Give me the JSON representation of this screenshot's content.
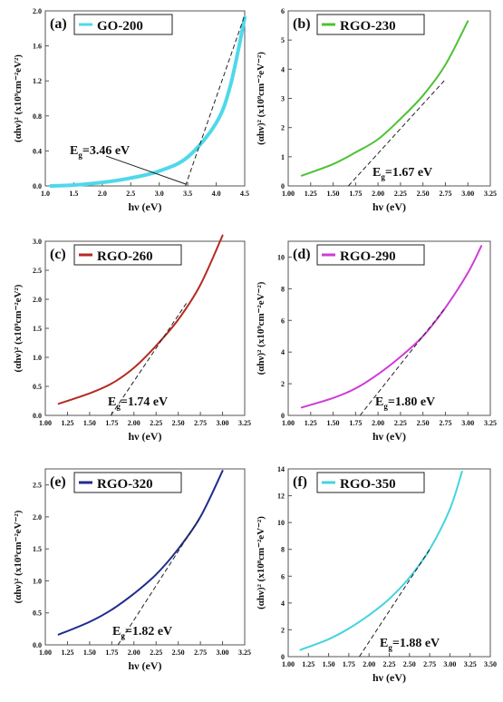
{
  "figure": {
    "panels": [
      {
        "label": "(a)",
        "legend": "GO-200",
        "color": "#4fd8ea",
        "eg_label": "Eg=3.46 eV",
        "eg_sub": "g",
        "eg_val": "=3.46 eV",
        "ylabel_exp": "9",
        "xlabel": "hν (eV)",
        "xticks": [
          "1.0",
          "1.5",
          "2.0",
          "2.5",
          "3.0",
          "3.5",
          "4.0",
          "4.5"
        ],
        "yticks": [
          "0.0",
          "0.4",
          "0.8",
          "1.2",
          "1.6",
          "2.0"
        ]
      },
      {
        "label": "(b)",
        "legend": "RGO-230",
        "color": "#4cc234",
        "eg_label": "Eg=1.67 eV",
        "eg_sub": "g",
        "eg_val": "=1.67 eV",
        "ylabel_exp": "9",
        "xlabel": "hν (eV)",
        "xticks": [
          "1.00",
          "1.25",
          "1.50",
          "1.75",
          "2.00",
          "2.25",
          "2.50",
          "2.75",
          "3.00",
          "3.25"
        ],
        "yticks": [
          "0",
          "1",
          "2",
          "3",
          "4",
          "5",
          "6"
        ]
      },
      {
        "label": "(c)",
        "legend": "RGO-260",
        "color": "#b52a22",
        "eg_label": "Eg=1.74 eV",
        "eg_sub": "g",
        "eg_val": "=1.74 eV",
        "ylabel_exp": "9",
        "xlabel": "hν (eV)",
        "xticks": [
          "1.00",
          "1.25",
          "1.50",
          "1.75",
          "2.00",
          "2.25",
          "2.50",
          "2.75",
          "3.00",
          "3.25"
        ],
        "yticks": [
          "0.0",
          "0.5",
          "1.0",
          "1.5",
          "2.0",
          "2.5",
          "3.0"
        ]
      },
      {
        "label": "(d)",
        "legend": "RGO-290",
        "color": "#cf3bd8",
        "eg_label": "Eg=1.80 eV",
        "eg_sub": "g",
        "eg_val": "=1.80 eV",
        "ylabel_exp": "9",
        "xlabel": "hν (eV)",
        "xticks": [
          "1.00",
          "1.25",
          "1.50",
          "1.75",
          "2.00",
          "2.25",
          "2.50",
          "2.75",
          "3.00",
          "3.25"
        ],
        "yticks": [
          "0",
          "2",
          "4",
          "6",
          "8",
          "10"
        ]
      },
      {
        "label": "(e)",
        "legend": "RGO-320",
        "color": "#1f2c8c",
        "eg_label": "Eg=1.82 eV",
        "eg_sub": "g",
        "eg_val": "=1.82 eV",
        "ylabel_exp": "9",
        "xlabel": "hν (eV)",
        "xticks": [
          "1.00",
          "1.25",
          "1.50",
          "1.75",
          "2.00",
          "2.25",
          "2.50",
          "2.75",
          "3.00",
          "3.25"
        ],
        "yticks": [
          "0.0",
          "0.5",
          "1.0",
          "1.5",
          "2.0",
          "2.5"
        ]
      },
      {
        "label": "(f)",
        "legend": "RGO-350",
        "color": "#43d4de",
        "eg_label": "Eg=1.88 eV",
        "eg_sub": "g",
        "eg_val": "=1.88 eV",
        "ylabel_exp": "8",
        "xlabel": "hν (eV)",
        "xticks": [
          "1.00",
          "1.25",
          "1.50",
          "1.75",
          "2.00",
          "2.25",
          "2.50",
          "2.75",
          "3.00",
          "3.25",
          "3.50"
        ],
        "yticks": [
          "0",
          "2",
          "4",
          "6",
          "8",
          "10",
          "12",
          "14"
        ]
      }
    ]
  },
  "chart_data": [
    {
      "type": "line",
      "title": "(a)",
      "xlabel": "hν (eV)",
      "ylabel": "(αhν)² (x10⁹cm⁻²eV²)",
      "xlim": [
        1.0,
        4.5
      ],
      "ylim": [
        0.0,
        2.0
      ],
      "grid": false,
      "legend_position": "top-left",
      "series": [
        {
          "name": "GO-200",
          "color": "#4fd8ea",
          "x": [
            1.1,
            1.5,
            2.0,
            2.5,
            3.0,
            3.5,
            4.0,
            4.25,
            4.5
          ],
          "y": [
            0.0,
            0.01,
            0.04,
            0.09,
            0.17,
            0.33,
            0.72,
            1.15,
            1.92
          ]
        }
      ],
      "tangent": {
        "x": [
          3.46,
          4.5
        ],
        "y": [
          0.0,
          1.95
        ]
      },
      "annotation": "Eg=3.46 eV",
      "eg": 3.46
    },
    {
      "type": "line",
      "title": "(b)",
      "xlabel": "hν (eV)",
      "ylabel": "(αhν)² (x10⁹cm⁻²eV⁻²)",
      "xlim": [
        1.0,
        3.25
      ],
      "ylim": [
        0,
        6
      ],
      "grid": false,
      "legend_position": "top-left",
      "series": [
        {
          "name": "RGO-230",
          "color": "#4cc234",
          "x": [
            1.15,
            1.5,
            1.75,
            2.0,
            2.25,
            2.5,
            2.75,
            3.0
          ],
          "y": [
            0.35,
            0.75,
            1.15,
            1.6,
            2.3,
            3.1,
            4.15,
            5.65
          ]
        }
      ],
      "tangent": {
        "x": [
          1.67,
          2.75
        ],
        "y": [
          0.0,
          3.65
        ]
      },
      "annotation": "Eg=1.67 eV",
      "eg": 1.67
    },
    {
      "type": "line",
      "title": "(c)",
      "xlabel": "hν (eV)",
      "ylabel": "(αhν)² (x10⁹cm⁻²eV²)",
      "xlim": [
        1.0,
        3.25
      ],
      "ylim": [
        0.0,
        3.0
      ],
      "grid": false,
      "legend_position": "top-left",
      "series": [
        {
          "name": "RGO-260",
          "color": "#b52a22",
          "x": [
            1.15,
            1.5,
            1.75,
            2.0,
            2.25,
            2.5,
            2.75,
            3.0
          ],
          "y": [
            0.2,
            0.38,
            0.55,
            0.82,
            1.2,
            1.65,
            2.25,
            3.1
          ]
        }
      ],
      "tangent": {
        "x": [
          1.74,
          2.6
        ],
        "y": [
          0.0,
          1.95
        ]
      },
      "annotation": "Eg=1.74 eV",
      "eg": 1.74
    },
    {
      "type": "line",
      "title": "(d)",
      "xlabel": "hν (eV)",
      "ylabel": "(αhν)² (x10⁹cm⁻²eV⁻²)",
      "xlim": [
        1.0,
        3.25
      ],
      "ylim": [
        0,
        11
      ],
      "grid": false,
      "legend_position": "top-left",
      "series": [
        {
          "name": "RGO-290",
          "color": "#cf3bd8",
          "x": [
            1.15,
            1.5,
            1.75,
            2.0,
            2.25,
            2.5,
            2.75,
            3.0,
            3.15
          ],
          "y": [
            0.5,
            1.1,
            1.7,
            2.6,
            3.7,
            5.0,
            6.8,
            9.0,
            10.7
          ]
        }
      ],
      "tangent": {
        "x": [
          1.8,
          2.75
        ],
        "y": [
          0.0,
          6.8
        ]
      },
      "annotation": "Eg=1.80 eV",
      "eg": 1.8
    },
    {
      "type": "line",
      "title": "(e)",
      "xlabel": "hν (eV)",
      "ylabel": "(αhν)² (x10⁹cm⁻²eV⁻²)",
      "xlim": [
        1.0,
        3.25
      ],
      "ylim": [
        0.0,
        2.75
      ],
      "grid": false,
      "legend_position": "top-left",
      "series": [
        {
          "name": "RGO-320",
          "color": "#1f2c8c",
          "x": [
            1.15,
            1.5,
            1.75,
            2.0,
            2.25,
            2.5,
            2.75,
            3.0
          ],
          "y": [
            0.16,
            0.36,
            0.55,
            0.8,
            1.1,
            1.5,
            2.0,
            2.72
          ]
        }
      ],
      "tangent": {
        "x": [
          1.82,
          2.75
        ],
        "y": [
          0.0,
          2.0
        ]
      },
      "annotation": "Eg=1.82 eV",
      "eg": 1.82
    },
    {
      "type": "line",
      "title": "(f)",
      "xlabel": "hν (eV)",
      "ylabel": "(αhν)² (x10⁸cm⁻²eV⁻²)",
      "xlim": [
        1.0,
        3.5
      ],
      "ylim": [
        0,
        14
      ],
      "grid": false,
      "legend_position": "top-left",
      "series": [
        {
          "name": "RGO-350",
          "color": "#43d4de",
          "x": [
            1.15,
            1.5,
            1.75,
            2.0,
            2.25,
            2.5,
            2.75,
            3.0,
            3.15
          ],
          "y": [
            0.5,
            1.3,
            2.1,
            3.1,
            4.3,
            5.9,
            8.0,
            11.0,
            13.8
          ]
        }
      ],
      "tangent": {
        "x": [
          1.88,
          2.75
        ],
        "y": [
          0.0,
          8.0
        ]
      },
      "annotation": "Eg=1.88 eV",
      "eg": 1.88
    }
  ]
}
